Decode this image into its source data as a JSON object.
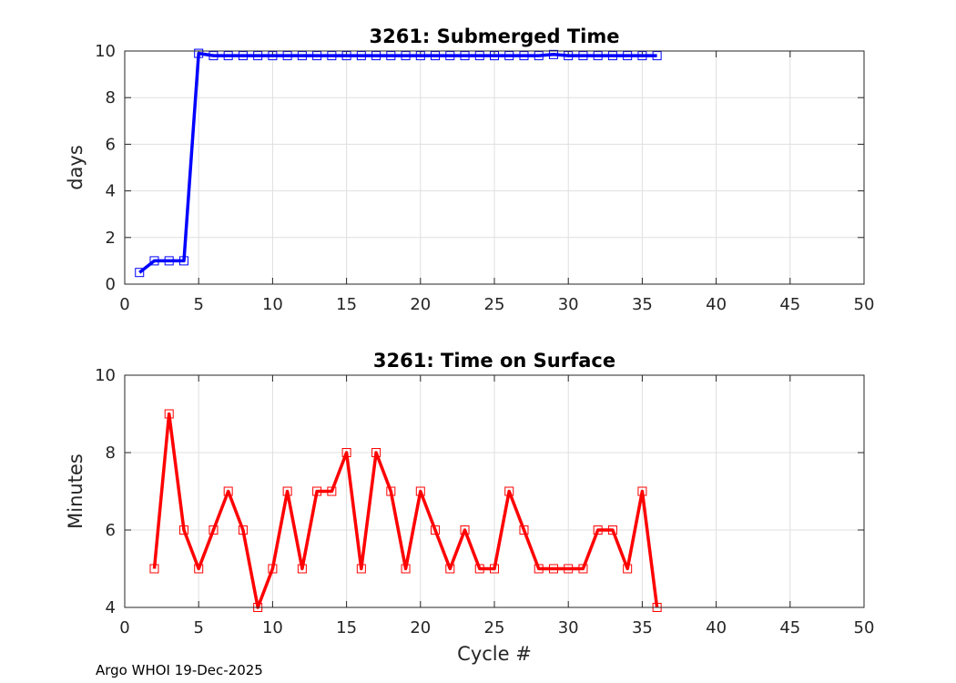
{
  "chart_data": [
    {
      "type": "line",
      "title": "3261: Submerged Time",
      "xlabel": "",
      "ylabel": "days",
      "xlim": [
        0,
        50
      ],
      "ylim": [
        0,
        10
      ],
      "xticks": [
        0,
        5,
        10,
        15,
        20,
        25,
        30,
        35,
        40,
        45,
        50
      ],
      "yticks": [
        0,
        2,
        4,
        6,
        8,
        10
      ],
      "grid": true,
      "color": "#0000ff",
      "marker": "square",
      "x": [
        1,
        2,
        3,
        4,
        5,
        6,
        7,
        8,
        9,
        10,
        11,
        12,
        13,
        14,
        15,
        16,
        17,
        18,
        19,
        20,
        21,
        22,
        23,
        24,
        25,
        26,
        27,
        28,
        29,
        30,
        31,
        32,
        33,
        34,
        35,
        36
      ],
      "values": [
        0.5,
        1.0,
        1.0,
        1.0,
        9.9,
        9.8,
        9.8,
        9.8,
        9.8,
        9.8,
        9.8,
        9.8,
        9.8,
        9.8,
        9.8,
        9.8,
        9.8,
        9.8,
        9.8,
        9.8,
        9.8,
        9.8,
        9.8,
        9.8,
        9.8,
        9.8,
        9.8,
        9.8,
        9.85,
        9.8,
        9.8,
        9.8,
        9.8,
        9.8,
        9.8,
        9.8
      ]
    },
    {
      "type": "line",
      "title": "3261: Time on Surface",
      "xlabel": "Cycle #",
      "ylabel": "Minutes",
      "xlim": [
        0,
        50
      ],
      "ylim": [
        4,
        10
      ],
      "xticks": [
        0,
        5,
        10,
        15,
        20,
        25,
        30,
        35,
        40,
        45,
        50
      ],
      "yticks": [
        4,
        6,
        8,
        10
      ],
      "grid": true,
      "color": "#ff0000",
      "marker": "square",
      "x": [
        2,
        3,
        4,
        5,
        6,
        7,
        8,
        9,
        10,
        11,
        12,
        13,
        14,
        15,
        16,
        17,
        18,
        19,
        20,
        21,
        22,
        23,
        24,
        25,
        26,
        27,
        28,
        29,
        30,
        31,
        32,
        33,
        34,
        35,
        36
      ],
      "values": [
        5,
        9,
        6,
        5,
        6,
        7,
        6,
        4,
        5,
        7,
        5,
        7,
        7,
        8,
        5,
        8,
        7,
        5,
        7,
        6,
        5,
        6,
        5,
        5,
        7,
        6,
        5,
        5,
        5,
        5,
        6,
        6,
        5,
        7,
        4
      ]
    }
  ],
  "footer": "Argo WHOI 19-Dec-2025"
}
